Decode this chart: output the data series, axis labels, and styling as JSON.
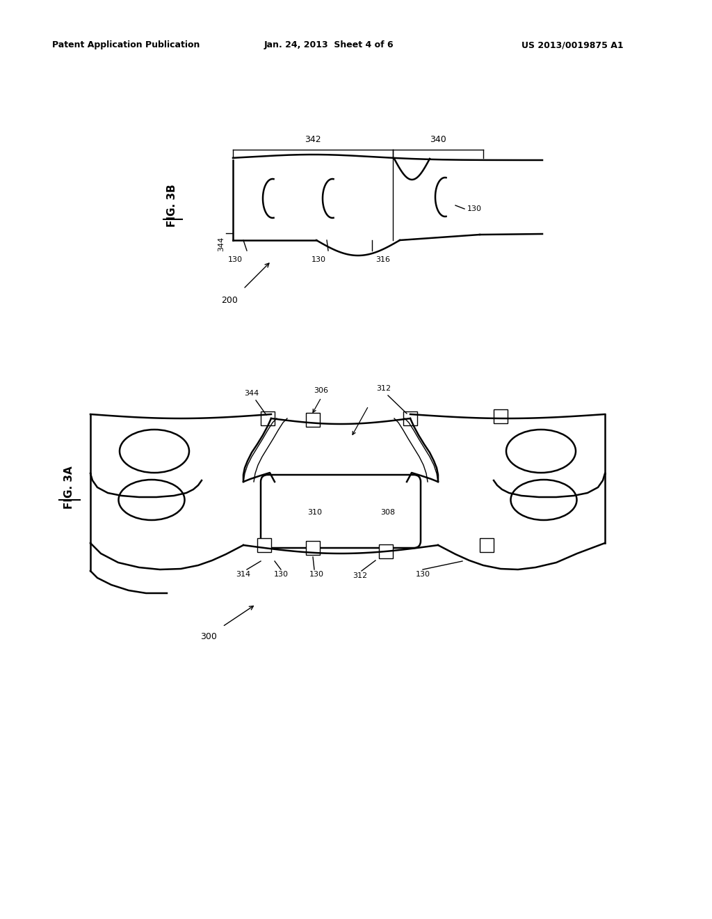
{
  "bg_color": "#ffffff",
  "line_color": "#000000",
  "header_left": "Patent Application Publication",
  "header_center": "Jan. 24, 2013  Sheet 4 of 6",
  "header_right": "US 2013/0019875 A1",
  "fig3b_label": "FIG. 3B",
  "fig3a_label": "FIG. 3A"
}
